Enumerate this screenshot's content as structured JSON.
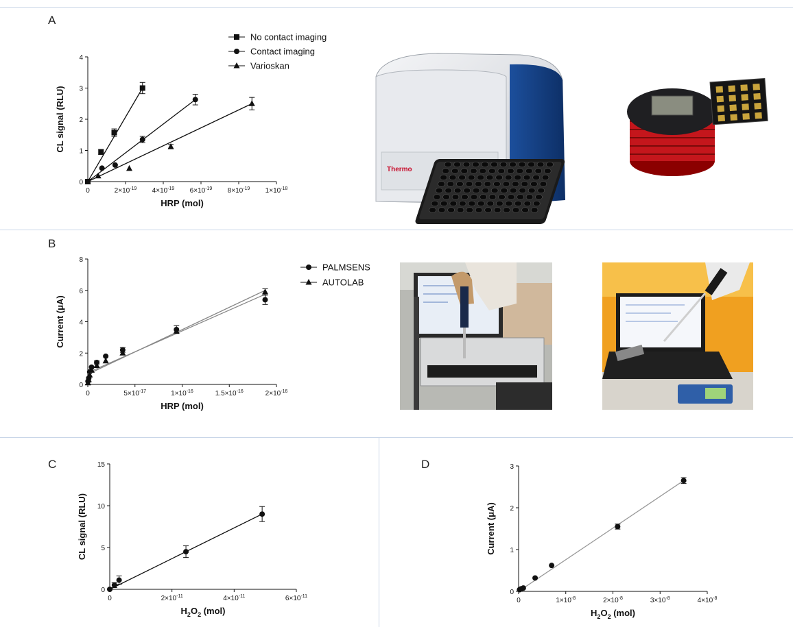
{
  "panels": {
    "a": "A",
    "b": "B",
    "c": "C",
    "d": "D"
  },
  "chart_data": [
    {
      "id": "A",
      "type": "scatter",
      "xlabel": "HRP (mol)",
      "ylabel": "CL signal (RLU)",
      "xlim": [
        0,
        1e-18
      ],
      "ylim": [
        0,
        4
      ],
      "x_ticks": [
        {
          "v": 0,
          "label": "0"
        },
        {
          "v": 2e-19,
          "label": "2×10-19"
        },
        {
          "v": 4e-19,
          "label": "4×10-19"
        },
        {
          "v": 6e-19,
          "label": "6×10-19"
        },
        {
          "v": 8e-19,
          "label": "8×10-19"
        },
        {
          "v": 1e-18,
          "label": "1×10-18"
        }
      ],
      "y_ticks": [
        0,
        1,
        2,
        3,
        4
      ],
      "legend_position": "top-right",
      "series": [
        {
          "name": "No contact imaging",
          "marker": "square",
          "x": [
            0,
            7e-20,
            1.4e-19,
            2.9e-19
          ],
          "y": [
            0,
            0.95,
            1.57,
            3.0
          ],
          "err": [
            0,
            0.08,
            0.12,
            0.18
          ],
          "fit": [
            [
              0,
              0
            ],
            [
              2.9e-19,
              3.0
            ]
          ]
        },
        {
          "name": "Contact imaging",
          "marker": "circle",
          "x": [
            0,
            7.5e-20,
            1.45e-19,
            2.9e-19,
            5.7e-19
          ],
          "y": [
            0,
            0.43,
            0.53,
            1.35,
            2.63
          ],
          "err": [
            0,
            0,
            0,
            0.1,
            0.17
          ],
          "fit": [
            [
              0,
              0
            ],
            [
              5.7e-19,
              2.63
            ]
          ]
        },
        {
          "name": "Varioskan",
          "marker": "triangle",
          "x": [
            0,
            5.5e-20,
            2.2e-19,
            4.4e-19,
            8.7e-19
          ],
          "y": [
            0,
            0.18,
            0.42,
            1.12,
            2.5
          ],
          "err": [
            0,
            0,
            0,
            0.07,
            0.2
          ],
          "fit": [
            [
              0,
              0
            ],
            [
              8.7e-19,
              2.5
            ]
          ]
        }
      ]
    },
    {
      "id": "B",
      "type": "scatter",
      "xlabel": "HRP (mol)",
      "ylabel": "Current (μA)",
      "xlim": [
        0,
        2e-16
      ],
      "ylim": [
        0,
        8
      ],
      "x_ticks": [
        {
          "v": 0,
          "label": "0"
        },
        {
          "v": 5e-17,
          "label": "5×10-17"
        },
        {
          "v": 1e-16,
          "label": "1×10-16"
        },
        {
          "v": 1.5e-16,
          "label": "1.5×10-16"
        },
        {
          "v": 2e-16,
          "label": "2×10-16"
        }
      ],
      "y_ticks": [
        0,
        2,
        4,
        6,
        8
      ],
      "legend_position": "top-right",
      "series": [
        {
          "name": "PALMSENS",
          "marker": "circle",
          "x": [
            2e-19,
            1e-18,
            2e-18,
            4e-18,
            9.5e-18,
            1.9e-17,
            3.7e-17,
            9.4e-17,
            1.88e-16
          ],
          "y": [
            0.2,
            0.4,
            0.8,
            1.1,
            1.4,
            1.8,
            2.2,
            3.5,
            5.4
          ],
          "err": [
            0,
            0,
            0,
            0,
            0.1,
            0,
            0.15,
            0.25,
            0.3
          ],
          "fit": [
            [
              0,
              0.75
            ],
            [
              1.88e-16,
              5.75
            ]
          ]
        },
        {
          "name": "AUTOLAB",
          "marker": "triangle",
          "x": [
            2e-19,
            1e-18,
            2e-18,
            4e-18,
            9.5e-18,
            1.9e-17,
            3.7e-17,
            9.4e-17,
            1.88e-16
          ],
          "y": [
            0.1,
            0.3,
            0.6,
            0.9,
            1.2,
            1.5,
            2.0,
            3.4,
            5.9
          ],
          "err": [
            0,
            0,
            0,
            0,
            0,
            0,
            0,
            0,
            0.2
          ],
          "fit": [
            [
              0,
              0.65
            ],
            [
              1.88e-16,
              6.0
            ]
          ]
        }
      ]
    },
    {
      "id": "C",
      "type": "scatter",
      "xlabel": "H2O2 (mol)",
      "ylabel": "CL signal (RLU)",
      "xlim": [
        0,
        6e-11
      ],
      "ylim": [
        0,
        15
      ],
      "x_ticks": [
        {
          "v": 0,
          "label": "0"
        },
        {
          "v": 2e-11,
          "label": "2×10-11"
        },
        {
          "v": 4e-11,
          "label": "4×10-11"
        },
        {
          "v": 6e-11,
          "label": "6×10-11"
        }
      ],
      "y_ticks": [
        0,
        5,
        10,
        15
      ],
      "series": [
        {
          "name": "",
          "marker": "circle",
          "x": [
            0,
            1.5e-12,
            3e-12,
            2.45e-11,
            4.9e-11
          ],
          "y": [
            0,
            0.5,
            1.1,
            4.5,
            9.0
          ],
          "err": [
            0,
            0.3,
            0.5,
            0.7,
            0.9
          ],
          "fit": [
            [
              0,
              0
            ],
            [
              4.9e-11,
              9.0
            ]
          ]
        }
      ]
    },
    {
      "id": "D",
      "type": "scatter",
      "xlabel": "H2O2 (mol)",
      "ylabel": "Current (μA)",
      "xlim": [
        0,
        4e-08
      ],
      "ylim": [
        0,
        3
      ],
      "x_ticks": [
        {
          "v": 0,
          "label": "0"
        },
        {
          "v": 1e-08,
          "label": "1×10-8"
        },
        {
          "v": 2e-08,
          "label": "2×10-8"
        },
        {
          "v": 3e-08,
          "label": "3×10-8"
        },
        {
          "v": 4e-08,
          "label": "4×10-8"
        }
      ],
      "y_ticks": [
        0,
        1,
        2,
        3
      ],
      "series": [
        {
          "name": "",
          "marker": "circle",
          "x": [
            2e-10,
            5e-10,
            1e-09,
            3.5e-09,
            7e-09,
            2.1e-08,
            3.5e-08
          ],
          "y": [
            0.04,
            0.06,
            0.08,
            0.32,
            0.62,
            1.55,
            2.65
          ],
          "err": [
            0,
            0,
            0,
            0,
            0,
            0.06,
            0.07
          ],
          "fit": [
            [
              0,
              0
            ],
            [
              3.5e-08,
              2.65
            ]
          ],
          "fit_color": "#999999"
        }
      ]
    }
  ],
  "photos": {
    "reader_brand": "Thermo"
  }
}
